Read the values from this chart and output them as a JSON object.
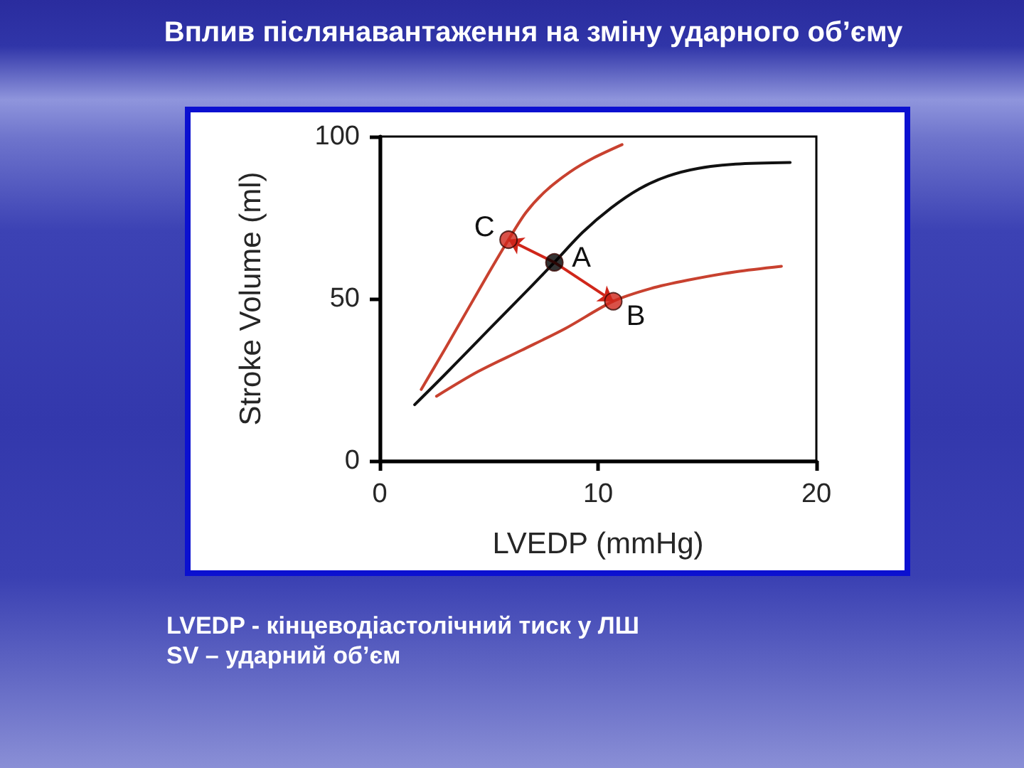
{
  "chart_data": {
    "type": "line",
    "title": "Вплив післянавантаження на зміну ударного об’єму",
    "xlabel": "LVEDP (mmHg)",
    "ylabel": "Stroke Volume (ml)",
    "xlim": [
      0,
      20
    ],
    "xticks": [
      0,
      10,
      20
    ],
    "ylim": [
      0,
      100
    ],
    "yticks": [
      0,
      50,
      100
    ],
    "grid": false,
    "series": [
      {
        "color": "#111111",
        "marker": "none",
        "x": [
          1.6,
          3,
          5,
          7,
          8.0,
          9.3,
          10.6,
          11.9,
          13.2,
          14.6,
          16.3,
          18.8
        ],
        "values": [
          17.3,
          26.7,
          40.5,
          54.2,
          61.2,
          70.5,
          78,
          83.9,
          87.8,
          90.2,
          91.5,
          92
        ]
      },
      {
        "color": "#c8412f",
        "marker": "none",
        "x": [
          1.9,
          3,
          4,
          5,
          5.9,
          6.7,
          7.6,
          8.7,
          9.8,
          11.1
        ],
        "values": [
          22,
          34.6,
          46.3,
          58,
          68.2,
          76.6,
          83.2,
          89,
          93.4,
          97.5
        ]
      },
      {
        "color": "#c8412f",
        "marker": "none",
        "x": [
          2.6,
          4.5,
          6.5,
          8.5,
          10.7,
          12.4,
          14.1,
          16.3,
          18.4
        ],
        "values": [
          19.9,
          27.5,
          34.1,
          40.8,
          49.2,
          53.1,
          55.7,
          58.3,
          60
        ]
      },
      {
        "type": "scatter",
        "marker": "circle",
        "x": [
          8.0,
          5.9,
          10.7
        ],
        "values": [
          61.2,
          68.2,
          49.2
        ],
        "colors": [
          "#000000",
          "#d0261a",
          "#d0261a"
        ]
      }
    ],
    "annotations": [
      {
        "text": "A",
        "x": 8.0,
        "y": 61.2
      },
      {
        "text": "C",
        "x": 5.9,
        "y": 68.2
      },
      {
        "text": "B",
        "x": 10.7,
        "y": 49.2
      },
      "LVEDP - кінцеводіастолічний тиск у ЛШ",
      "SV – ударний об’єм"
    ]
  }
}
